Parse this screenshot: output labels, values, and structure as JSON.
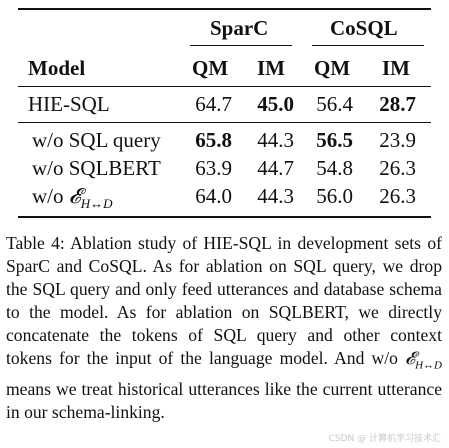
{
  "table": {
    "groups": [
      {
        "label": "SparC"
      },
      {
        "label": "CoSQL"
      }
    ],
    "header": {
      "model": "Model",
      "cols": [
        "QM",
        "IM",
        "QM",
        "IM"
      ]
    },
    "rows": [
      {
        "model": "HIE-SQL",
        "values": [
          "64.7",
          "45.0",
          "56.4",
          "28.7"
        ],
        "bold": [
          false,
          true,
          false,
          true
        ]
      },
      {
        "model": "w/o SQL query",
        "values": [
          "65.8",
          "44.3",
          "56.5",
          "23.9"
        ],
        "bold": [
          true,
          false,
          true,
          false
        ]
      },
      {
        "model": "w/o SQLBERT",
        "values": [
          "63.9",
          "44.7",
          "54.8",
          "26.3"
        ],
        "bold": [
          false,
          false,
          false,
          false
        ]
      },
      {
        "model_prefix": "w/o ",
        "model_math": "𝓔",
        "model_sub": "H↔D",
        "values": [
          "64.0",
          "44.3",
          "56.0",
          "26.3"
        ],
        "bold": [
          false,
          false,
          false,
          false
        ]
      }
    ]
  },
  "caption": {
    "part1": "Table 4: Ablation study of HIE-SQL in development sets of SparC and CoSQL. As for ablation on SQL query, we drop the SQL query and only feed utterances and database schema to the model. As for ablation on SQLBERT, we directly concatenate the tokens of SQL query and other context tokens for the input of the language model. And w/o ",
    "math": "𝓔",
    "sub": "H↔D",
    "part2": " means we treat historical utterances like the current utterance in our schema-linking."
  },
  "watermark": "CSDN @ 计算机学习技术汇"
}
